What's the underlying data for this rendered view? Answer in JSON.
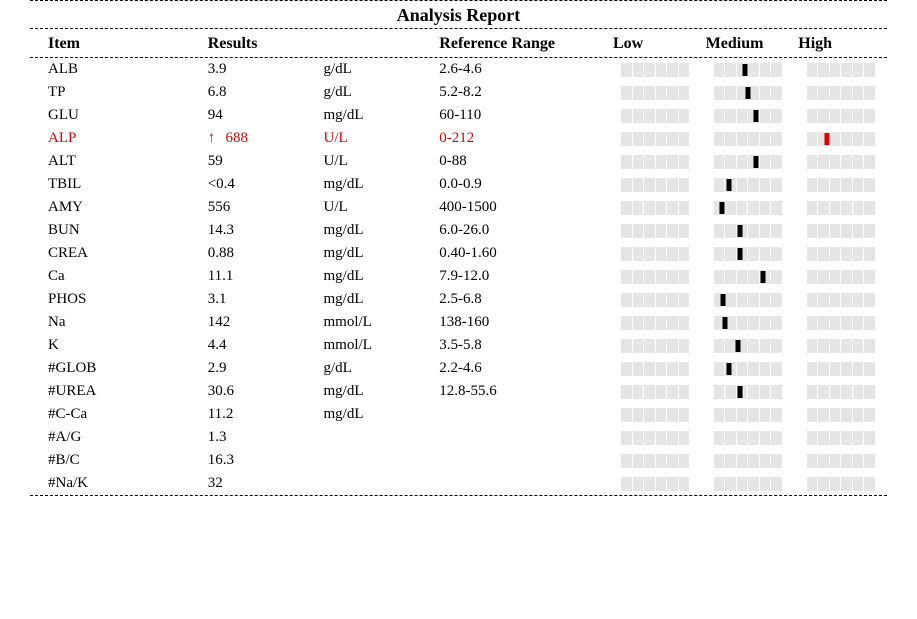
{
  "title": "Analysis Report",
  "columns": {
    "item": "Item",
    "results": "Results",
    "unit": "",
    "range": "Reference Range",
    "low": "Low",
    "medium": "Medium",
    "high": "High"
  },
  "gauge": {
    "segments": 6,
    "bg_color": "#e5e5e5",
    "tick_color": "#ffffff",
    "marker_color": "#000000",
    "flag_color": "#dd0000"
  },
  "rows": [
    {
      "item": "ALB",
      "result": "3.9",
      "unit": "g/dL",
      "range": "2.6-4.6",
      "flag": "",
      "marker": {
        "band": "medium",
        "pos": 0.45
      }
    },
    {
      "item": "TP",
      "result": "6.8",
      "unit": "g/dL",
      "range": "5.2-8.2",
      "flag": "",
      "marker": {
        "band": "medium",
        "pos": 0.5
      }
    },
    {
      "item": "GLU",
      "result": "94",
      "unit": "mg/dL",
      "range": "60-110",
      "flag": "",
      "marker": {
        "band": "medium",
        "pos": 0.62
      }
    },
    {
      "item": "ALP",
      "result": "688",
      "unit": "U/L",
      "range": "0-212",
      "flag": "up",
      "marker": {
        "band": "high",
        "pos": 0.3,
        "red": true
      }
    },
    {
      "item": "ALT",
      "result": "59",
      "unit": "U/L",
      "range": "0-88",
      "flag": "",
      "marker": {
        "band": "medium",
        "pos": 0.62
      }
    },
    {
      "item": "TBIL",
      "result": "<0.4",
      "unit": "mg/dL",
      "range": "0.0-0.9",
      "flag": "",
      "marker": {
        "band": "medium",
        "pos": 0.22
      }
    },
    {
      "item": "AMY",
      "result": "556",
      "unit": "U/L",
      "range": "400-1500",
      "flag": "",
      "marker": {
        "band": "medium",
        "pos": 0.12
      }
    },
    {
      "item": "BUN",
      "result": "14.3",
      "unit": "mg/dL",
      "range": "6.0-26.0",
      "flag": "",
      "marker": {
        "band": "medium",
        "pos": 0.38
      }
    },
    {
      "item": "CREA",
      "result": "0.88",
      "unit": "mg/dL",
      "range": "0.40-1.60",
      "flag": "",
      "marker": {
        "band": "medium",
        "pos": 0.38
      }
    },
    {
      "item": "Ca",
      "result": "11.1",
      "unit": "mg/dL",
      "range": "7.9-12.0",
      "flag": "",
      "marker": {
        "band": "medium",
        "pos": 0.72
      }
    },
    {
      "item": "PHOS",
      "result": "3.1",
      "unit": "mg/dL",
      "range": "2.5-6.8",
      "flag": "",
      "marker": {
        "band": "medium",
        "pos": 0.14
      }
    },
    {
      "item": "Na",
      "result": "142",
      "unit": "mmol/L",
      "range": "138-160",
      "flag": "",
      "marker": {
        "band": "medium",
        "pos": 0.16
      }
    },
    {
      "item": "K",
      "result": "4.4",
      "unit": "mmol/L",
      "range": "3.5-5.8",
      "flag": "",
      "marker": {
        "band": "medium",
        "pos": 0.36
      }
    },
    {
      "item": "#GLOB",
      "result": "2.9",
      "unit": "g/dL",
      "range": "2.2-4.6",
      "flag": "",
      "marker": {
        "band": "medium",
        "pos": 0.22
      }
    },
    {
      "item": "#UREA",
      "result": "30.6",
      "unit": "mg/dL",
      "range": "12.8-55.6",
      "flag": "",
      "marker": {
        "band": "medium",
        "pos": 0.38
      }
    },
    {
      "item": "#C-Ca",
      "result": "11.2",
      "unit": "mg/dL",
      "range": "",
      "flag": "",
      "marker": null
    },
    {
      "item": "#A/G",
      "result": "1.3",
      "unit": "",
      "range": "",
      "flag": "",
      "marker": null
    },
    {
      "item": "#B/C",
      "result": "16.3",
      "unit": "",
      "range": "",
      "flag": "",
      "marker": null
    },
    {
      "item": "#Na/K",
      "result": "32",
      "unit": "",
      "range": "",
      "flag": "",
      "marker": null
    }
  ]
}
